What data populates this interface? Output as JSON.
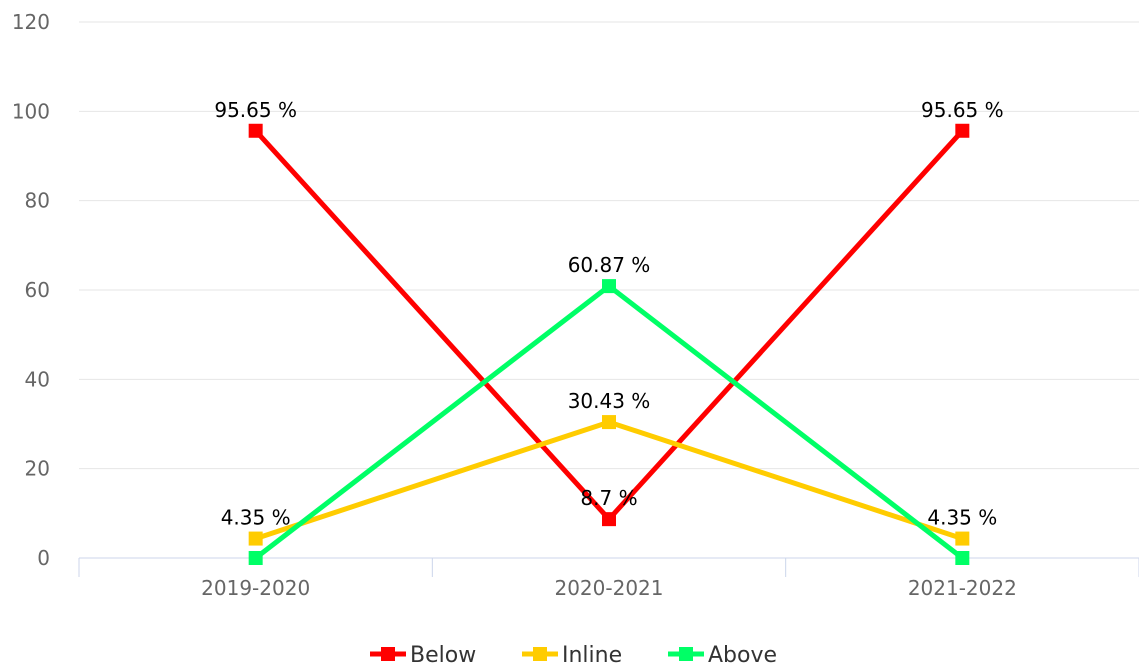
{
  "chart_data": {
    "type": "line",
    "categories": [
      "2019-2020",
      "2020-2021",
      "2021-2022"
    ],
    "ylim": [
      0,
      120
    ],
    "yticks": [
      0,
      20,
      40,
      60,
      80,
      100,
      120
    ],
    "grid": true,
    "legend_position": "bottom-center",
    "series": [
      {
        "name": "Below",
        "color": "#ff0000",
        "values": [
          95.65,
          8.7,
          95.65
        ],
        "labels": [
          "95.65 %",
          "8.7 %",
          "95.65 %"
        ],
        "label_index": [
          0,
          1,
          2
        ]
      },
      {
        "name": "Inline",
        "color": "#ffcc00",
        "values": [
          4.35,
          30.43,
          4.35
        ],
        "labels": [
          "4.35 %",
          "30.43 %",
          "4.35 %"
        ],
        "label_index": [
          0,
          1,
          2
        ]
      },
      {
        "name": "Above",
        "color": "#00ff66",
        "values": [
          0,
          60.87,
          0
        ],
        "labels": [
          "",
          "60.87 %",
          ""
        ],
        "label_index": [
          1
        ]
      }
    ]
  }
}
